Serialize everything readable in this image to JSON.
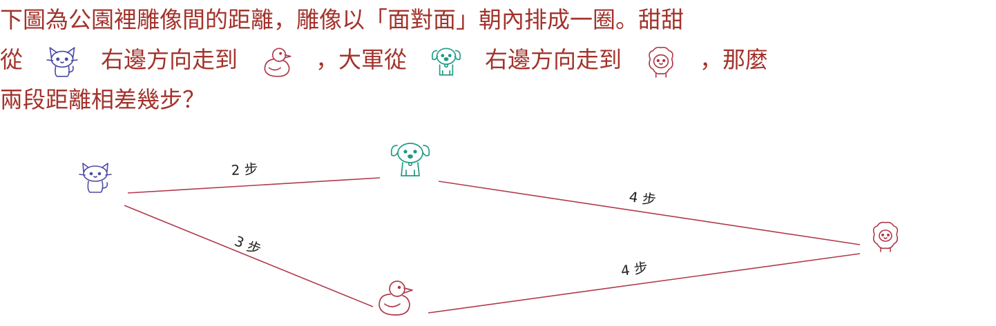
{
  "question": {
    "line1_a": "下圖為公園裡雕像間的距離",
    "line1_b": "，雕像以「面對面」朝內排成一圈。甜甜",
    "line2_a": "從",
    "line2_b": "右邊方向走到",
    "line2_c": "，大軍從",
    "line2_d": "右邊方向走到",
    "line2_e": "，那麼",
    "line3_a": "兩段距離相差幾步？"
  },
  "icons": {
    "cat": "cat-icon",
    "duck": "duck-icon",
    "dog": "dog-icon",
    "sheep": "sheep-icon"
  },
  "colors": {
    "text": "#a3332c",
    "edge": "#b0394a",
    "cat": "#4b4aa0",
    "dog": "#1f9a85",
    "duck": "#b0394a",
    "sheep": "#b0394a"
  },
  "edges": [
    {
      "from": "cat",
      "to": "dog",
      "label": "2 步"
    },
    {
      "from": "dog",
      "to": "sheep",
      "label": "4 步"
    },
    {
      "from": "cat",
      "to": "duck",
      "label": "3 步"
    },
    {
      "from": "duck",
      "to": "sheep",
      "label": "4 步"
    }
  ]
}
